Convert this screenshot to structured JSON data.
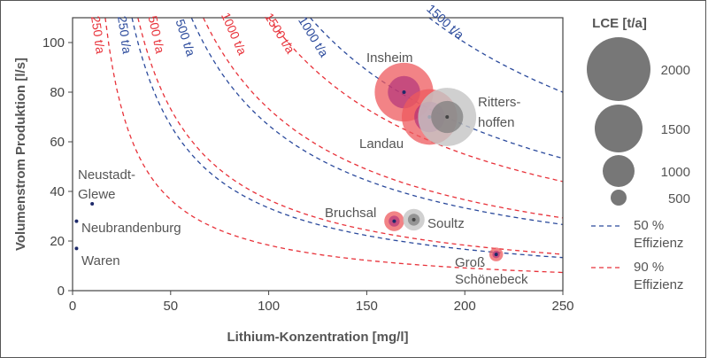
{
  "chart_data": {
    "type": "scatter",
    "xlabel": "Lithium-Konzentration [mg/l]",
    "ylabel": "Volumenstrom Produktion [l/s]",
    "xlim": [
      0,
      250
    ],
    "ylim": [
      0,
      110
    ],
    "xticks": [
      "0",
      "50",
      "100",
      "150",
      "200",
      "250"
    ],
    "yticks": [
      "0",
      "20",
      "40",
      "60",
      "80",
      "100"
    ],
    "xtick_values": [
      0,
      50,
      100,
      150,
      200,
      250
    ],
    "ytick_values": [
      0,
      20,
      40,
      60,
      80,
      100
    ],
    "grid": false,
    "colors": {
      "eff50": "#2b4a9c",
      "eff90": "#e8323a",
      "germany_outer": "#ee5a5e",
      "germany_inner": "#a8287a",
      "france_outer": "#c4c4c4",
      "france_inner": "#7a7a7a",
      "legend_bubble": "#777777"
    },
    "iso_lines": [
      {
        "label": "250 t/a",
        "efficiency": "50 %",
        "lce": 250,
        "series": "eff50"
      },
      {
        "label": "500 t/a",
        "efficiency": "50 %",
        "lce": 500,
        "series": "eff50"
      },
      {
        "label": "1000 t/a",
        "efficiency": "50 %",
        "lce": 1000,
        "series": "eff50"
      },
      {
        "label": "1500 t/a",
        "efficiency": "50 %",
        "lce": 1500,
        "series": "eff50"
      },
      {
        "label": "250 t/a",
        "efficiency": "90 %",
        "lce": 250,
        "series": "eff90"
      },
      {
        "label": "500 t/a",
        "efficiency": "90 %",
        "lce": 500,
        "series": "eff90"
      },
      {
        "label": "1000 t/a",
        "efficiency": "90 %",
        "lce": 1000,
        "series": "eff90"
      },
      {
        "label": "1500 t/a",
        "efficiency": "90 %",
        "lce": 1500,
        "series": "eff90"
      }
    ],
    "sites": [
      {
        "name": "Insheim",
        "x": 169,
        "y": 80,
        "lce_50": 1015,
        "lce_90": 1840,
        "group": "germany"
      },
      {
        "name": "Landau",
        "x": 182,
        "y": 70,
        "lce_50": 955,
        "lce_90": 1740,
        "group": "germany"
      },
      {
        "name": "Ritters-",
        "name2": "hoffen",
        "x": 191,
        "y": 70,
        "lce_50": 1005,
        "lce_90": 1825,
        "group": "france"
      },
      {
        "name": "Bruchsal",
        "x": 164,
        "y": 28,
        "lce_50": 343,
        "lce_90": 623,
        "group": "germany"
      },
      {
        "name": "Soultz",
        "x": 174,
        "y": 28.6,
        "lce_50": 373,
        "lce_90": 678,
        "group": "france"
      },
      {
        "name": "Groß",
        "name2": "Schönebeck",
        "x": 216,
        "y": 14.6,
        "lce_50": 236,
        "lce_90": 430,
        "group": "germany"
      },
      {
        "name": "Neustadt-",
        "name2": "Glewe",
        "x": 10,
        "y": 35,
        "lce_50": 26,
        "lce_90": 48,
        "group": "germany"
      },
      {
        "name": "Neubrandenburg",
        "x": 2,
        "y": 28,
        "lce_50": 4,
        "lce_90": 8,
        "group": "germany"
      },
      {
        "name": "Waren",
        "x": 2,
        "y": 17,
        "lce_50": 3,
        "lce_90": 5,
        "group": "germany"
      }
    ],
    "legend": {
      "title": "LCE [t/a]",
      "sizes": [
        {
          "label": "2000",
          "value": 2000
        },
        {
          "label": "1500",
          "value": 1500
        },
        {
          "label": "1000",
          "value": 1000
        },
        {
          "label": "500",
          "value": 500
        }
      ],
      "lines": [
        {
          "label1": "50 %",
          "label2": "Effizienz",
          "series": "eff50"
        },
        {
          "label1": "90 %",
          "label2": "Effizienz",
          "series": "eff90"
        }
      ],
      "placement": "right"
    }
  }
}
